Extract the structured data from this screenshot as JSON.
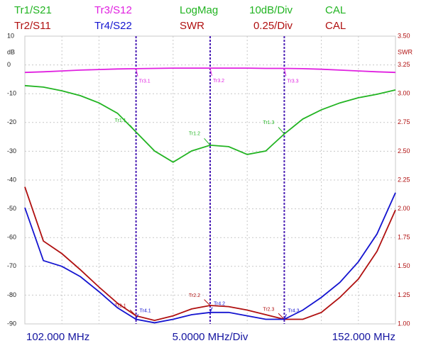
{
  "chart_data": {
    "type": "line",
    "formats": [
      {
        "format": "LogMag",
        "scale": "10dB/Div",
        "status": "CAL",
        "color": "#22b422"
      },
      {
        "format": "SWR",
        "scale": "0.25/Div",
        "status": "CAL",
        "color": "#b01010"
      }
    ],
    "x": [
      102,
      104.5,
      107,
      109.5,
      112,
      114.5,
      117,
      119.5,
      122,
      124.5,
      127,
      129.5,
      132,
      134.5,
      137,
      139.5,
      142,
      144.5,
      147,
      149.5,
      152
    ],
    "xlim": [
      102,
      152
    ],
    "xticks": [
      {
        "value": 102,
        "label": "102.000 MHz"
      },
      {
        "value": 152,
        "label": "152.000 MHz"
      }
    ],
    "xlabel": "5.0000 MHz/Div",
    "xdivisions": 10,
    "ylabel": "dB",
    "ylim": [
      -90,
      10
    ],
    "yticks": [
      10,
      0,
      -10,
      -20,
      -30,
      -40,
      -50,
      -60,
      -70,
      -80,
      -90
    ],
    "y2label": "SWR",
    "y2lim": [
      1,
      3.5
    ],
    "y2ticks": [
      {
        "value": 3.5,
        "label": "3.50"
      },
      {
        "value": 3.25,
        "label": "3.25"
      },
      {
        "value": 3,
        "label": "3.00"
      },
      {
        "value": 2.75,
        "label": "2.75"
      },
      {
        "value": 2.5,
        "label": "2.50"
      },
      {
        "value": 2.25,
        "label": "2.25"
      },
      {
        "value": 2,
        "label": "2.00"
      },
      {
        "value": 1.75,
        "label": "1.75"
      },
      {
        "value": 1.5,
        "label": "1.50"
      },
      {
        "value": 1.25,
        "label": "1.25"
      },
      {
        "value": 1,
        "label": "1.00"
      }
    ],
    "grid": true,
    "markers": {
      "x": [
        117,
        127,
        137
      ],
      "color": "#4b1fb5"
    },
    "series": [
      {
        "name": "Tr1/S21",
        "color": "#22b422",
        "marker_labels": [
          "Tr1.1",
          "Tr1.2",
          "Tr1.3"
        ],
        "values": [
          -7.2,
          -7.7,
          -9,
          -10.7,
          -13.2,
          -16.8,
          -23.3,
          -29.9,
          -33.8,
          -29.9,
          -27.9,
          -28.4,
          -31.1,
          -29.9,
          -24,
          -18.8,
          -15.6,
          -13.2,
          -11.4,
          -10.2,
          -8.7
        ]
      },
      {
        "name": "Tr2/S11",
        "color": "#b01010",
        "axis": "y2",
        "marker_labels": [
          "Tr2.1",
          "Tr2.2",
          "Tr2.3"
        ],
        "values": [
          2.19,
          1.72,
          1.61,
          1.47,
          1.32,
          1.18,
          1.07,
          1.03,
          1.07,
          1.13,
          1.16,
          1.15,
          1.12,
          1.08,
          1.04,
          1.04,
          1.1,
          1.23,
          1.39,
          1.63,
          1.99
        ]
      },
      {
        "name": "Tr3/S12",
        "color": "#e020e0",
        "marker_labels": [
          "Tr3.1",
          "Tr3.2",
          "Tr3.3"
        ],
        "values": [
          -2.6,
          -2.4,
          -2.1,
          -1.8,
          -1.6,
          -1.4,
          -1.3,
          -1.2,
          -1.1,
          -1.1,
          -1.1,
          -1.1,
          -1.1,
          -1.2,
          -1.2,
          -1.3,
          -1.5,
          -1.8,
          -2.1,
          -2.4,
          -2.6
        ]
      },
      {
        "name": "Tr4/S22",
        "color": "#1414d0",
        "axis": "y2",
        "marker_labels": [
          "Tr4.1",
          "Tr4.2",
          "Tr4.3"
        ],
        "values": [
          2.01,
          1.55,
          1.5,
          1.41,
          1.28,
          1.14,
          1.04,
          1.01,
          1.04,
          1.08,
          1.1,
          1.1,
          1.07,
          1.04,
          1.04,
          1.12,
          1.23,
          1.36,
          1.54,
          1.78,
          2.14
        ]
      }
    ]
  }
}
